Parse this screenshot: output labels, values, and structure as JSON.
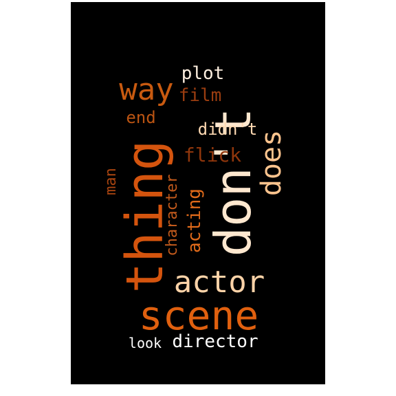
{
  "word_cloud": {
    "background": "#000000",
    "words": [
      {
        "key": "thing",
        "text": "thing",
        "color": "#d4540e"
      },
      {
        "key": "dont",
        "text": "don't",
        "color": "#ffe8cf"
      },
      {
        "key": "scene",
        "text": "scene",
        "color": "#e0600f"
      },
      {
        "key": "actor",
        "text": "actor",
        "color": "#fdd3a8"
      },
      {
        "key": "does",
        "text": "does",
        "color": "#fdc48e"
      },
      {
        "key": "way",
        "text": "way",
        "color": "#c85a10"
      },
      {
        "key": "plot",
        "text": "plot",
        "color": "#fff0e0"
      },
      {
        "key": "film",
        "text": "film",
        "color": "#9a3d10"
      },
      {
        "key": "end",
        "text": "end",
        "color": "#bb5412"
      },
      {
        "key": "didnt",
        "text": "didn't",
        "color": "#fed9b2"
      },
      {
        "key": "flick",
        "text": "flick",
        "color": "#8f360c"
      },
      {
        "key": "man",
        "text": "man",
        "color": "#a84410"
      },
      {
        "key": "character",
        "text": "character",
        "color": "#c25a1c"
      },
      {
        "key": "acting",
        "text": "acting",
        "color": "#e06a1a"
      },
      {
        "key": "director",
        "text": "director",
        "color": "#ffffff"
      },
      {
        "key": "look",
        "text": "look",
        "color": "#ffffff"
      }
    ]
  }
}
